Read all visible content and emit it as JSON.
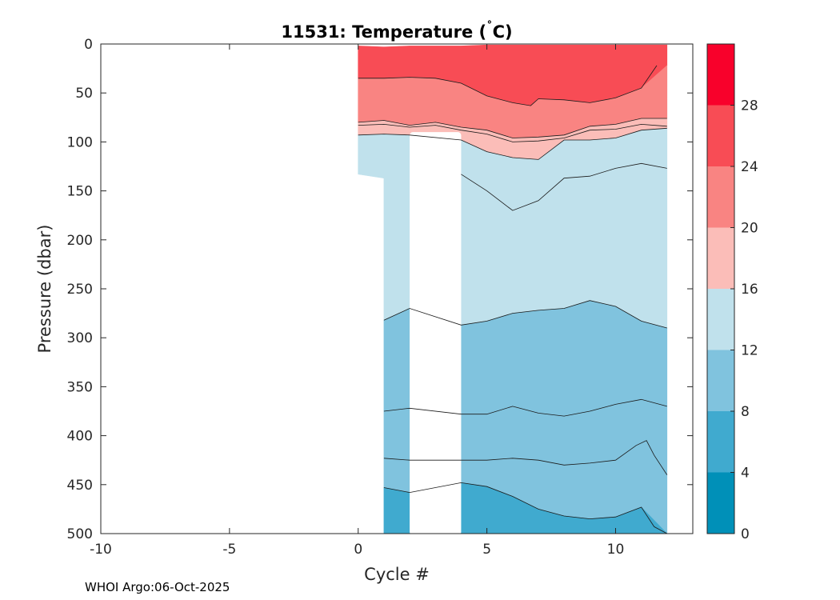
{
  "chart_data": {
    "type": "contour",
    "title_main": "11531:  Temperature (",
    "title_degree": "˚",
    "title_unit": "C)",
    "xlabel": "Cycle #",
    "ylabel": "Pressure (dbar)",
    "xlim": [
      -10,
      13
    ],
    "ylim": [
      0,
      500
    ],
    "y_reversed": true,
    "x_ticks": [
      -10,
      -5,
      0,
      5,
      10
    ],
    "y_ticks": [
      0,
      50,
      100,
      150,
      200,
      250,
      300,
      350,
      400,
      450,
      500
    ],
    "colorbar": {
      "levels": [
        0,
        4,
        8,
        12,
        16,
        20,
        24,
        28,
        32
      ],
      "tick_labels": [
        0,
        4,
        8,
        12,
        16,
        20,
        24,
        28
      ],
      "colors": [
        "#0090b8",
        "#40aacf",
        "#80c3de",
        "#c0e1ec",
        "#fbbdb8",
        "#f98482",
        "#f84c55",
        "#f8012b"
      ]
    },
    "gap_region": {
      "x_start": 2,
      "x_end": 4,
      "top_pressure": 90
    },
    "regions": [
      {
        "name": "band-24-28",
        "color_index": 6,
        "top": [
          [
            0,
            2
          ],
          [
            1,
            3
          ],
          [
            2,
            2
          ],
          [
            3,
            2
          ],
          [
            4,
            2
          ],
          [
            5,
            1
          ],
          [
            6,
            1
          ],
          [
            7,
            1
          ],
          [
            8,
            1
          ],
          [
            9,
            1
          ],
          [
            10,
            1
          ],
          [
            11,
            1
          ],
          [
            12,
            1
          ]
        ],
        "bottom": [
          [
            0,
            35
          ],
          [
            1,
            35
          ],
          [
            2,
            34
          ],
          [
            3,
            35
          ],
          [
            4,
            40
          ],
          [
            5,
            53
          ],
          [
            6,
            60
          ],
          [
            6.7,
            63
          ],
          [
            7,
            56
          ],
          [
            8,
            57
          ],
          [
            9,
            60
          ],
          [
            10,
            55
          ],
          [
            11,
            45
          ],
          [
            12,
            22
          ]
        ]
      },
      {
        "name": "band-20-24",
        "color_index": 5,
        "top": [
          [
            0,
            35
          ],
          [
            1,
            35
          ],
          [
            2,
            34
          ],
          [
            3,
            35
          ],
          [
            4,
            40
          ],
          [
            5,
            53
          ],
          [
            6,
            60
          ],
          [
            6.7,
            63
          ],
          [
            7,
            56
          ],
          [
            8,
            57
          ],
          [
            9,
            60
          ],
          [
            10,
            55
          ],
          [
            11,
            45
          ],
          [
            12,
            22
          ]
        ],
        "bottom": [
          [
            0,
            80
          ],
          [
            1,
            78
          ],
          [
            2,
            83
          ],
          [
            3,
            80
          ],
          [
            4,
            85
          ],
          [
            5,
            88
          ],
          [
            6,
            96
          ],
          [
            7,
            95
          ],
          [
            8,
            93
          ],
          [
            9,
            84
          ],
          [
            10,
            82
          ],
          [
            11,
            76
          ],
          [
            12,
            76
          ]
        ]
      },
      {
        "name": "band-16-20",
        "color_index": 4,
        "top": [
          [
            0,
            80
          ],
          [
            1,
            78
          ],
          [
            2,
            83
          ],
          [
            3,
            80
          ],
          [
            4,
            85
          ],
          [
            5,
            88
          ],
          [
            6,
            96
          ],
          [
            7,
            95
          ],
          [
            8,
            93
          ],
          [
            9,
            84
          ],
          [
            10,
            82
          ],
          [
            11,
            76
          ],
          [
            12,
            76
          ]
        ],
        "bottom": [
          [
            0,
            93
          ],
          [
            1,
            92
          ],
          [
            2,
            93
          ],
          [
            3,
            91
          ],
          [
            4,
            98
          ],
          [
            5,
            110
          ],
          [
            6,
            116
          ],
          [
            7,
            118
          ],
          [
            8,
            98
          ],
          [
            9,
            98
          ],
          [
            10,
            96
          ],
          [
            11,
            88
          ],
          [
            12,
            86
          ]
        ]
      },
      {
        "name": "band-12-16",
        "color_index": 3,
        "top": [
          [
            0,
            93
          ],
          [
            1,
            92
          ],
          [
            2,
            93
          ],
          [
            3,
            91
          ],
          [
            4,
            98
          ],
          [
            5,
            110
          ],
          [
            6,
            116
          ],
          [
            7,
            118
          ],
          [
            8,
            98
          ],
          [
            9,
            98
          ],
          [
            10,
            96
          ],
          [
            11,
            88
          ],
          [
            12,
            86
          ]
        ],
        "bottom": [
          [
            0,
            133
          ],
          [
            1,
            137
          ],
          [
            1,
            282
          ],
          [
            2,
            270
          ],
          [
            4,
            287
          ],
          [
            5,
            283
          ],
          [
            6,
            275
          ],
          [
            7,
            272
          ],
          [
            8,
            270
          ],
          [
            9,
            262
          ],
          [
            10,
            268
          ],
          [
            11,
            283
          ],
          [
            12,
            290
          ]
        ]
      },
      {
        "name": "band-8-12",
        "color_index": 2,
        "top": [
          [
            1,
            282
          ],
          [
            2,
            270
          ],
          [
            4,
            287
          ],
          [
            5,
            283
          ],
          [
            6,
            275
          ],
          [
            7,
            272
          ],
          [
            8,
            270
          ],
          [
            9,
            262
          ],
          [
            10,
            268
          ],
          [
            11,
            283
          ],
          [
            12,
            290
          ]
        ],
        "bottom": [
          [
            1,
            453
          ],
          [
            2,
            458
          ],
          [
            4,
            448
          ],
          [
            5,
            452
          ],
          [
            6,
            462
          ],
          [
            7,
            475
          ],
          [
            8,
            482
          ],
          [
            9,
            485
          ],
          [
            10,
            483
          ],
          [
            11,
            473
          ],
          [
            12,
            500
          ]
        ]
      },
      {
        "name": "band-4-8",
        "color_index": 1,
        "top": [
          [
            1,
            453
          ],
          [
            2,
            458
          ],
          [
            4,
            448
          ],
          [
            5,
            452
          ],
          [
            6,
            462
          ],
          [
            7,
            475
          ],
          [
            8,
            482
          ],
          [
            9,
            485
          ],
          [
            10,
            483
          ],
          [
            11,
            473
          ],
          [
            12,
            500
          ]
        ],
        "bottom": [
          [
            1,
            500
          ],
          [
            12,
            500
          ]
        ]
      }
    ],
    "contour_lines": [
      [
        [
          0,
          35
        ],
        [
          1,
          35
        ],
        [
          2,
          34
        ],
        [
          3,
          35
        ],
        [
          4,
          40
        ],
        [
          5,
          53
        ],
        [
          6,
          60
        ],
        [
          6.7,
          63
        ],
        [
          7,
          56
        ],
        [
          8,
          57
        ],
        [
          9,
          60
        ],
        [
          10,
          55
        ],
        [
          11,
          45
        ],
        [
          11.6,
          22
        ]
      ],
      [
        [
          0,
          80
        ],
        [
          1,
          78
        ],
        [
          2,
          83
        ],
        [
          3,
          80
        ],
        [
          4,
          85
        ],
        [
          5,
          88
        ],
        [
          6,
          96
        ],
        [
          7,
          95
        ],
        [
          8,
          93
        ],
        [
          9,
          84
        ],
        [
          10,
          82
        ],
        [
          11,
          76
        ],
        [
          12,
          76
        ]
      ],
      [
        [
          0,
          83
        ],
        [
          1,
          82
        ],
        [
          2,
          85
        ],
        [
          3,
          83
        ],
        [
          4,
          88
        ],
        [
          5,
          92
        ],
        [
          6,
          100
        ],
        [
          7,
          99
        ],
        [
          8,
          96
        ],
        [
          9,
          88
        ],
        [
          10,
          87
        ],
        [
          11,
          82
        ],
        [
          12,
          84
        ]
      ],
      [
        [
          0,
          93
        ],
        [
          1,
          92
        ],
        [
          2,
          93
        ],
        [
          3,
          91
        ],
        [
          4,
          98
        ],
        [
          5,
          110
        ],
        [
          6,
          116
        ],
        [
          7,
          118
        ],
        [
          8,
          98
        ],
        [
          9,
          98
        ],
        [
          10,
          96
        ],
        [
          11,
          88
        ],
        [
          12,
          86
        ]
      ],
      [
        [
          4,
          133
        ],
        [
          5,
          150
        ],
        [
          6,
          170
        ],
        [
          7,
          160
        ],
        [
          8,
          137
        ],
        [
          9,
          135
        ],
        [
          10,
          127
        ],
        [
          11,
          122
        ],
        [
          12,
          127
        ]
      ],
      [
        [
          1,
          282
        ],
        [
          2,
          270
        ],
        [
          4,
          287
        ],
        [
          5,
          283
        ],
        [
          6,
          275
        ],
        [
          7,
          272
        ],
        [
          8,
          270
        ],
        [
          9,
          262
        ],
        [
          10,
          268
        ],
        [
          11,
          283
        ],
        [
          12,
          290
        ]
      ],
      [
        [
          1,
          375
        ],
        [
          2,
          372
        ],
        [
          4,
          378
        ],
        [
          5,
          378
        ],
        [
          6,
          370
        ],
        [
          7,
          377
        ],
        [
          8,
          380
        ],
        [
          9,
          375
        ],
        [
          10,
          368
        ],
        [
          11,
          363
        ],
        [
          12,
          370
        ]
      ],
      [
        [
          1,
          423
        ],
        [
          2,
          425
        ],
        [
          4,
          425
        ],
        [
          5,
          425
        ],
        [
          6,
          423
        ],
        [
          7,
          425
        ],
        [
          8,
          430
        ],
        [
          9,
          428
        ],
        [
          10,
          425
        ],
        [
          10.8,
          410
        ],
        [
          11.2,
          405
        ],
        [
          11.5,
          420
        ],
        [
          12,
          440
        ]
      ],
      [
        [
          1,
          453
        ],
        [
          2,
          458
        ],
        [
          4,
          448
        ],
        [
          5,
          452
        ],
        [
          6,
          462
        ],
        [
          7,
          475
        ],
        [
          8,
          482
        ],
        [
          9,
          485
        ],
        [
          10,
          483
        ],
        [
          11,
          473
        ],
        [
          11.5,
          493
        ],
        [
          12,
          500
        ]
      ]
    ]
  },
  "footer": {
    "text": "WHOI Argo:06-Oct-2025"
  }
}
